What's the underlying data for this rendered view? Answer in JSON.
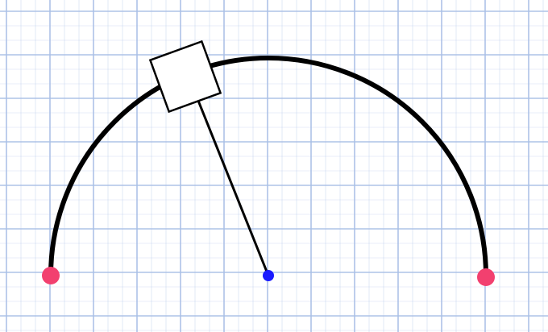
{
  "figure": {
    "type": "semicircular-track-with-block",
    "background": {
      "style": "graph-paper-grid",
      "color": "#ffffff",
      "grid_color": "#a9bfe6"
    },
    "track": {
      "shape": "semicircle-arc",
      "color": "#000000"
    },
    "endpoints": [
      {
        "role": "left-end",
        "color": "#f2406f"
      },
      {
        "role": "right-end",
        "color": "#f2406f"
      }
    ],
    "pivot": {
      "role": "center",
      "color": "#1a1aff"
    },
    "block": {
      "shape": "square",
      "fill": "#ffffff",
      "stroke": "#000000"
    },
    "rod": {
      "color": "#000000",
      "from": "center",
      "to": "block"
    }
  }
}
